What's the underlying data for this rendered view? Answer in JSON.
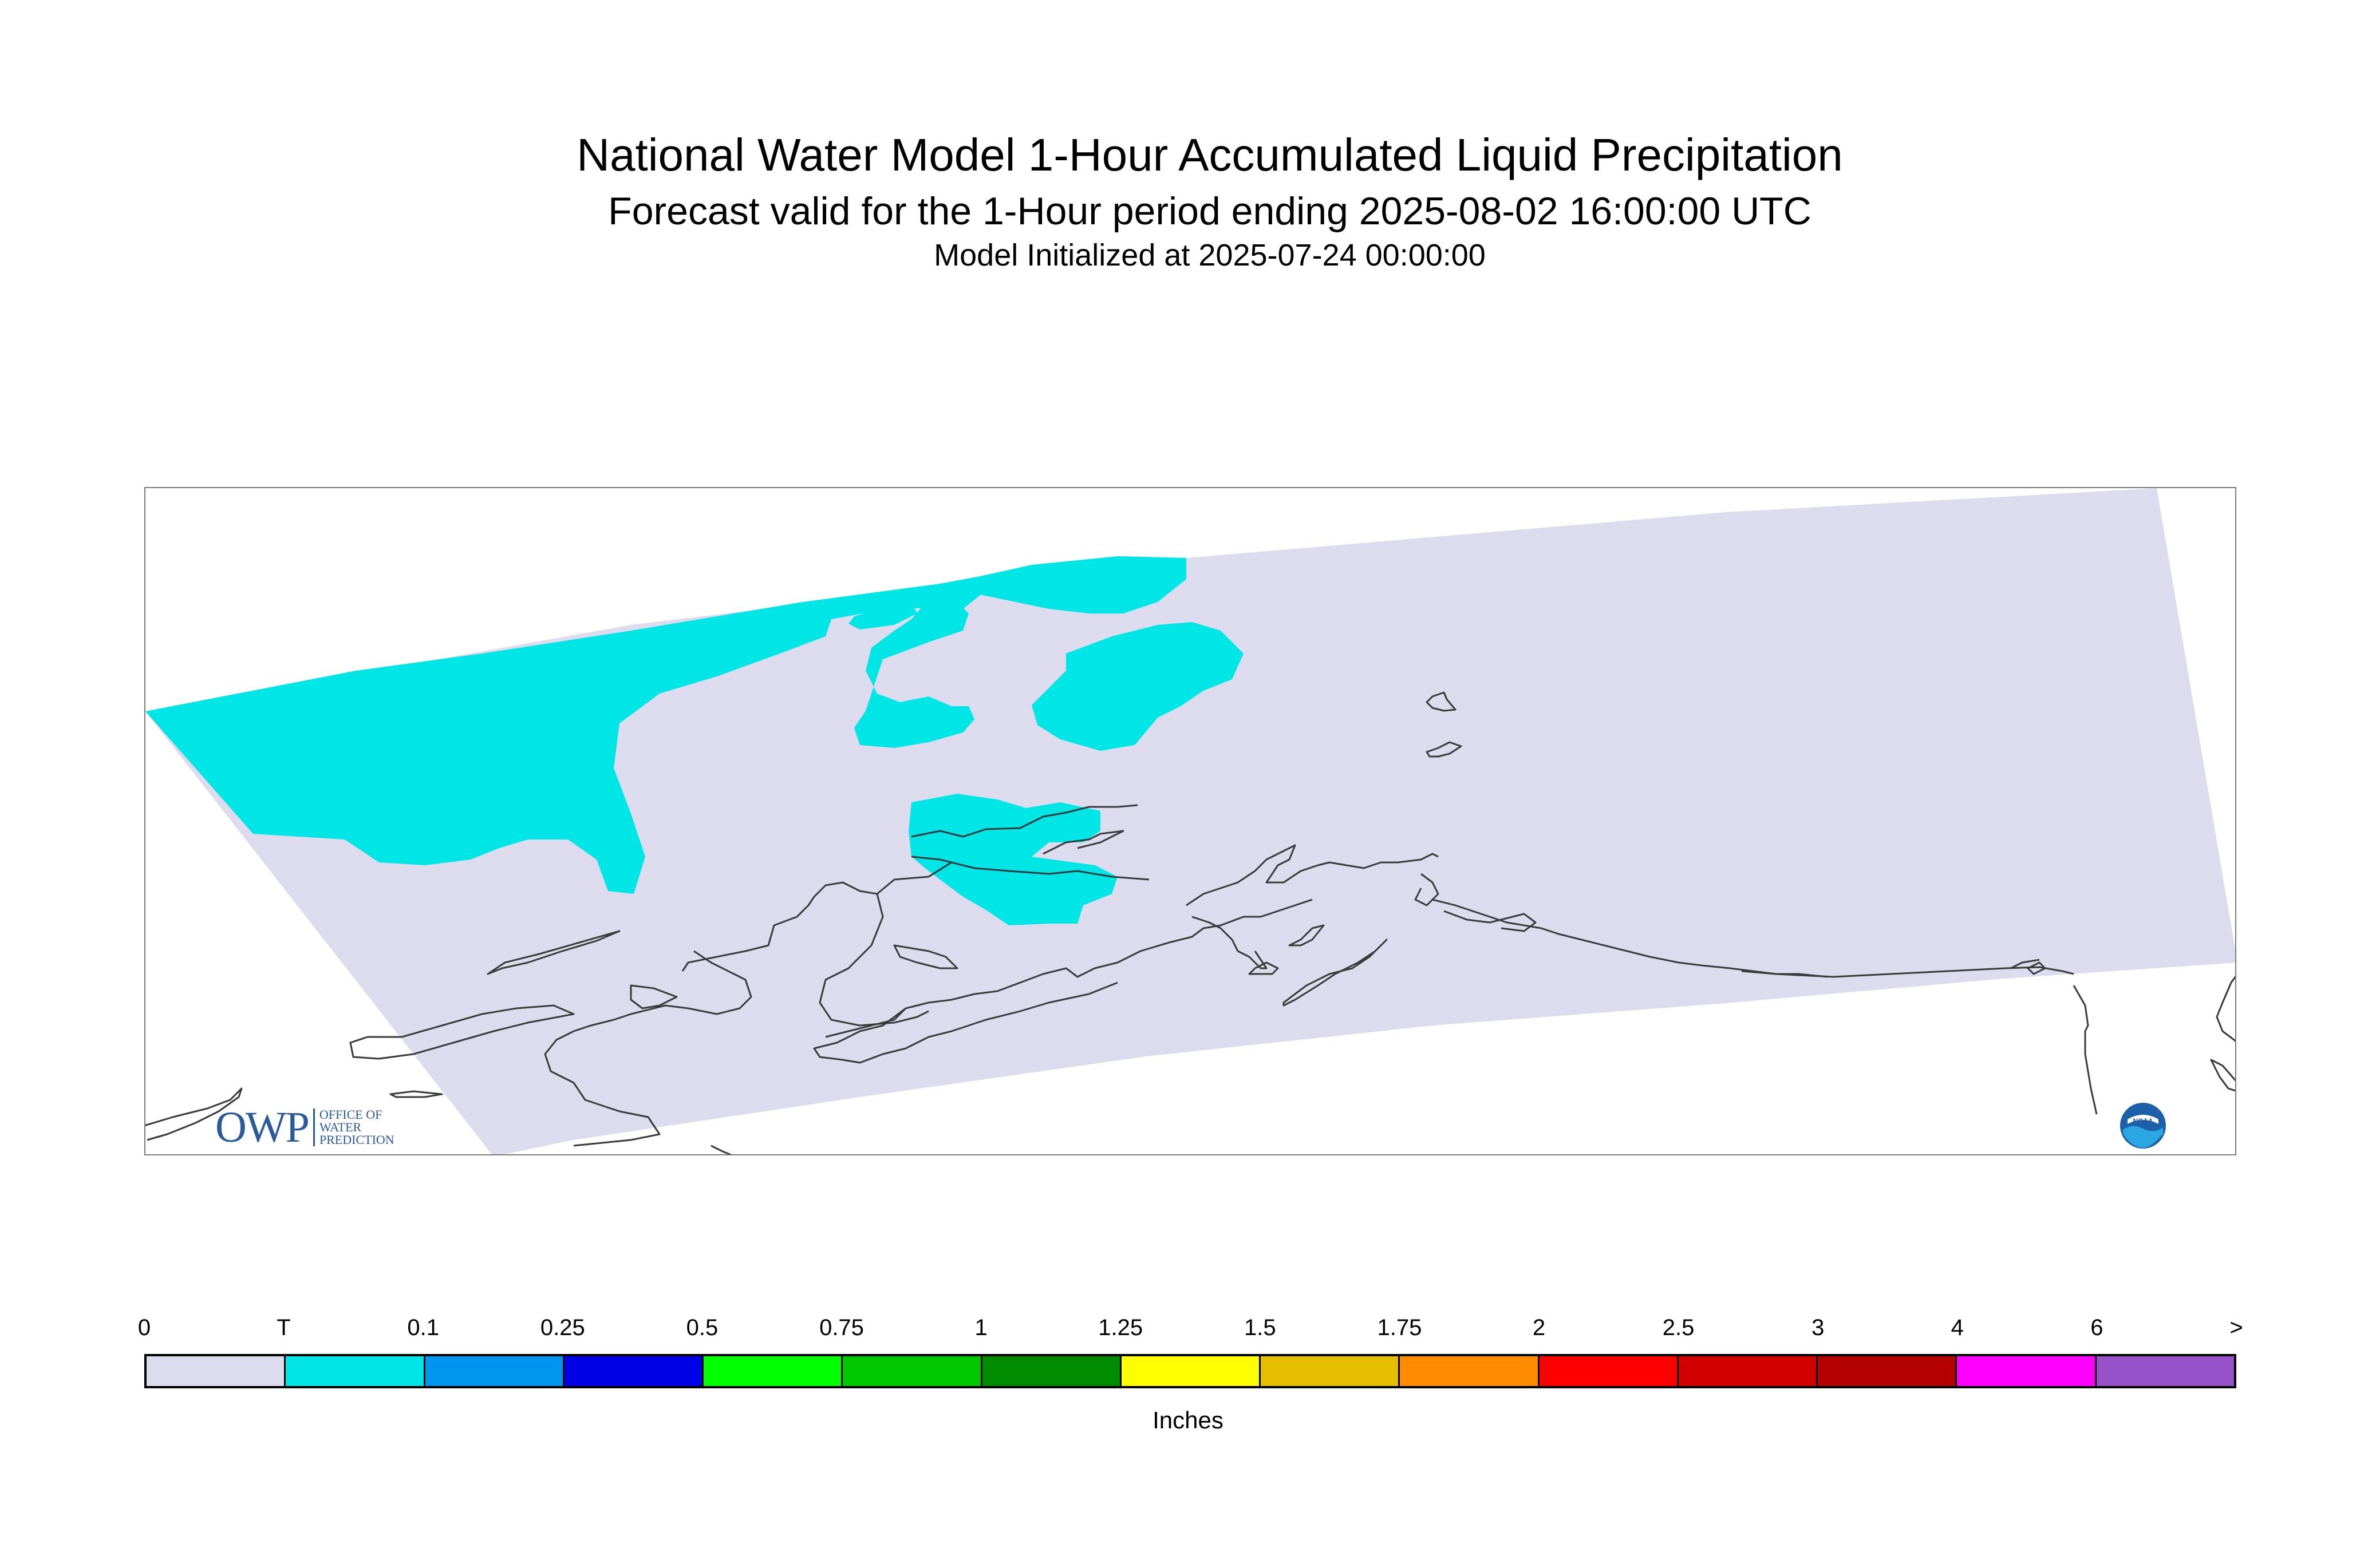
{
  "title": "National Water Model 1-Hour Accumulated Liquid Precipitation",
  "subtitle": "Forecast valid for the 1-Hour period ending 2025-08-02 16:00:00 UTC",
  "init_line": "Model Initialized at 2025-07-24 00:00:00",
  "legend": {
    "units": "Inches",
    "labels": [
      "0",
      "T",
      "0.1",
      "0.25",
      "0.5",
      "0.75",
      "1",
      "1.25",
      "1.5",
      "1.75",
      "2",
      "2.5",
      "3",
      "4",
      "6",
      ">"
    ],
    "colors": [
      "#dcdcee",
      "#00e5e5",
      "#0096f0",
      "#0000e6",
      "#00ff00",
      "#00c800",
      "#008c00",
      "#ffff00",
      "#e6be00",
      "#ff8c00",
      "#ff0000",
      "#d20000",
      "#b40000",
      "#ff00ff",
      "#9650c8"
    ]
  },
  "map": {
    "background_color": "#dcdcee",
    "precip_color": "#00e5e5",
    "coastline_color": "#3a3a3a"
  },
  "logos": {
    "owp": {
      "mark": "OWP",
      "line1": "OFFICE OF",
      "line2": "WATER",
      "line3": "PREDICTION"
    },
    "noaa": {
      "text": "NOAA"
    }
  }
}
